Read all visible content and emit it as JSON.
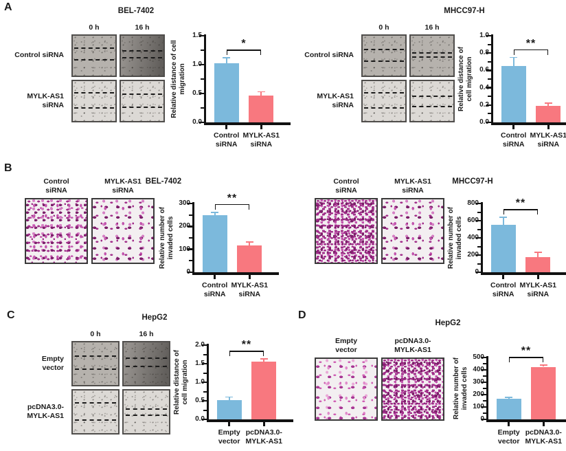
{
  "figure_background": "#ffffff",
  "colors": {
    "bar_blue": "#7cb9dc",
    "bar_pink": "#f8787f",
    "axis": "#111111",
    "stain_purple": "#a12e8a",
    "stain_pink": "#cf5fb4"
  },
  "panels": {
    "A": {
      "label": "A",
      "left": {
        "title": "BEL-7402",
        "col_headers": [
          "0 h",
          "16 h"
        ],
        "rows": [
          {
            "label": "Control siRNA",
            "images": [
              {
                "kind": "wound",
                "shade": "medium",
                "lines": [
                  30,
                  58
                ]
              },
              {
                "kind": "wound",
                "shade": "dark",
                "grad": true,
                "lines": [
                  36,
                  53
                ]
              }
            ]
          },
          {
            "label": "MYLK-AS1 siRNA",
            "images": [
              {
                "kind": "wound",
                "shade": "light",
                "lines": [
                  28,
                  66
                ]
              },
              {
                "kind": "wound",
                "shade": "light",
                "lines": [
                  31,
                  64
                ]
              }
            ]
          }
        ],
        "chart_index": 0
      },
      "right": {
        "title": "MHCC97-H",
        "col_headers": [
          "0 h",
          "16 h"
        ],
        "rows": [
          {
            "label": "Control siRNA",
            "images": [
              {
                "kind": "wound",
                "shade": "medium",
                "lines": [
                  33,
                  62
                ]
              },
              {
                "kind": "wound",
                "shade": "medium",
                "lines": [
                  42,
                  52
                ]
              }
            ]
          },
          {
            "label": "MYLK-AS1 siRNA",
            "images": [
              {
                "kind": "wound",
                "shade": "light",
                "lines": [
                  28,
                  65
                ]
              },
              {
                "kind": "wound",
                "shade": "light",
                "lines": [
                  36,
                  62
                ]
              }
            ]
          }
        ],
        "chart_index": 1
      }
    },
    "B": {
      "label": "B",
      "left": {
        "title": "BEL-7402",
        "cols": [
          {
            "header": "Control\nsiRNA",
            "image": {
              "kind": "cells",
              "density": "high",
              "tone": "purple"
            }
          },
          {
            "header": "MYLK-AS1\nsiRNA",
            "image": {
              "kind": "cells",
              "density": "med",
              "tone": "purple"
            }
          }
        ],
        "chart_index": 2
      },
      "right": {
        "title": "MHCC97-H",
        "cols": [
          {
            "header": "Control\nsiRNA",
            "image": {
              "kind": "cells",
              "density": "vhigh",
              "tone": "purple"
            }
          },
          {
            "header": "MYLK-AS1\nsiRNA",
            "image": {
              "kind": "cells",
              "density": "med",
              "tone": "purple"
            }
          }
        ],
        "chart_index": 3
      }
    },
    "C": {
      "label": "C",
      "block": {
        "title": "HepG2",
        "col_headers": [
          "0 h",
          "16 h"
        ],
        "rows": [
          {
            "label": "Empty\nvector",
            "images": [
              {
                "kind": "wound",
                "shade": "medium",
                "lines": [
                  30,
                  62
                ]
              },
              {
                "kind": "wound",
                "shade": "dark",
                "grad": true,
                "lines": [
                  36,
                  55
                ]
              }
            ]
          },
          {
            "label": "pcDNA3.0-\nMYLK-AS1",
            "images": [
              {
                "kind": "wound",
                "shade": "light",
                "lines": [
                  28,
                  68
                ]
              },
              {
                "kind": "wound",
                "shade": "light",
                "lines": [
                  42,
                  56
                ]
              }
            ]
          }
        ],
        "chart_index": 4
      }
    },
    "D": {
      "label": "D",
      "block": {
        "title": "HepG2",
        "cols": [
          {
            "header": "Empty\nvector",
            "image": {
              "kind": "cells",
              "density": "med",
              "tone": "pink"
            }
          },
          {
            "header": "pcDNA3.0-\nMYLK-AS1",
            "image": {
              "kind": "cells",
              "density": "vhigh",
              "tone": "purple"
            }
          }
        ],
        "chart_index": 5
      }
    }
  },
  "chart_data": [
    {
      "type": "bar",
      "title": "BEL-7402",
      "categories": [
        "Control siRNA",
        "MYLK-AS1 siRNA"
      ],
      "category_lines": [
        [
          "Control",
          "siRNA"
        ],
        [
          "MYLK-AS1",
          "siRNA"
        ]
      ],
      "values": [
        1.02,
        0.46
      ],
      "errors": [
        0.1,
        0.07
      ],
      "ylabel": "Relative distance of cell migration",
      "ylabel_lines": [
        "Relative distance of cell",
        "migration"
      ],
      "ylim": [
        0,
        1.5
      ],
      "yticks": [
        0,
        0.5,
        1.0,
        1.5
      ],
      "ytick_labels": [
        "0.0",
        "0.5",
        "1.0",
        "1.5"
      ],
      "significance": "*",
      "bar_colors": [
        "#7cb9dc",
        "#f8787f"
      ]
    },
    {
      "type": "bar",
      "title": "MHCC97-H",
      "categories": [
        "Control siRNA",
        "MYLK-AS1 siRNA"
      ],
      "category_lines": [
        [
          "Control",
          "siRNA"
        ],
        [
          "MYLK-AS1",
          "siRNA"
        ]
      ],
      "values": [
        0.65,
        0.19
      ],
      "errors": [
        0.1,
        0.03
      ],
      "ylabel": "Relative distance of cell migration",
      "ylabel_lines": [
        "Relative distance of",
        "cell migration"
      ],
      "ylim": [
        0,
        1.0
      ],
      "yticks": [
        0,
        0.2,
        0.4,
        0.6,
        0.8,
        1.0
      ],
      "ytick_labels": [
        "0.0",
        "0.2",
        "0.4",
        "0.6",
        "0.8",
        "1.0"
      ],
      "significance": "**",
      "bar_colors": [
        "#7cb9dc",
        "#f8787f"
      ]
    },
    {
      "type": "bar",
      "title": "BEL-7402",
      "categories": [
        "Control siRNA",
        "MYLK-AS1 siRNA"
      ],
      "category_lines": [
        [
          "Control",
          "siRNA"
        ],
        [
          "MYLK-AS1",
          "siRNA"
        ]
      ],
      "values": [
        250,
        118
      ],
      "errors": [
        12,
        14
      ],
      "ylabel": "Relative number of invaded cells",
      "ylabel_lines": [
        "Relative number of",
        "invaded cells"
      ],
      "ylim": [
        0,
        300
      ],
      "yticks": [
        0,
        100,
        200,
        300
      ],
      "ytick_labels": [
        "0",
        "100",
        "200",
        "300"
      ],
      "significance": "**",
      "bar_colors": [
        "#7cb9dc",
        "#f8787f"
      ]
    },
    {
      "type": "bar",
      "title": "MHCC97-H",
      "categories": [
        "Control siRNA",
        "MYLK-AS1 siRNA"
      ],
      "category_lines": [
        [
          "Control",
          "siRNA"
        ],
        [
          "MYLK-AS1",
          "siRNA"
        ]
      ],
      "values": [
        550,
        180
      ],
      "errors": [
        90,
        55
      ],
      "ylabel": "Relative number of invaded cells",
      "ylabel_lines": [
        "Relative number of",
        "invaded cells"
      ],
      "ylim": [
        0,
        800
      ],
      "yticks": [
        0,
        200,
        400,
        600,
        800
      ],
      "ytick_labels": [
        "0",
        "200",
        "400",
        "600",
        "800"
      ],
      "significance": "**",
      "bar_colors": [
        "#7cb9dc",
        "#f8787f"
      ]
    },
    {
      "type": "bar",
      "title": "HepG2",
      "categories": [
        "Empty vector",
        "pcDNA3.0-MYLK-AS1"
      ],
      "category_lines": [
        [
          "Empty",
          "vector"
        ],
        [
          "pcDNA3.0-",
          "MYLK-AS1"
        ]
      ],
      "values": [
        0.52,
        1.55
      ],
      "errors": [
        0.08,
        0.08
      ],
      "ylabel": "Relative distance of cell migration",
      "ylabel_lines": [
        "Relative distance of",
        "cell migration"
      ],
      "ylim": [
        0,
        2.0
      ],
      "yticks": [
        0,
        0.5,
        1.0,
        1.5,
        2.0
      ],
      "ytick_labels": [
        "0.0",
        "0.5",
        "1.0",
        "1.5",
        "2.0"
      ],
      "significance": "**",
      "bar_colors": [
        "#7cb9dc",
        "#f8787f"
      ]
    },
    {
      "type": "bar",
      "title": "HepG2",
      "categories": [
        "Empty vector",
        "pcDNA3.0-MYLK-AS1"
      ],
      "category_lines": [
        [
          "Empty",
          "vector"
        ],
        [
          "pcDNA3.0-",
          "MYLK-AS1"
        ]
      ],
      "values": [
        165,
        425
      ],
      "errors": [
        13,
        15
      ],
      "ylabel": "Relative number of invaded cells",
      "ylabel_lines": [
        "Relative number of",
        "invaded cells"
      ],
      "ylim": [
        0,
        500
      ],
      "yticks": [
        0,
        100,
        200,
        300,
        400,
        500
      ],
      "ytick_labels": [
        "0",
        "100",
        "200",
        "300",
        "400",
        "500"
      ],
      "significance": "**",
      "bar_colors": [
        "#7cb9dc",
        "#f8787f"
      ]
    }
  ]
}
